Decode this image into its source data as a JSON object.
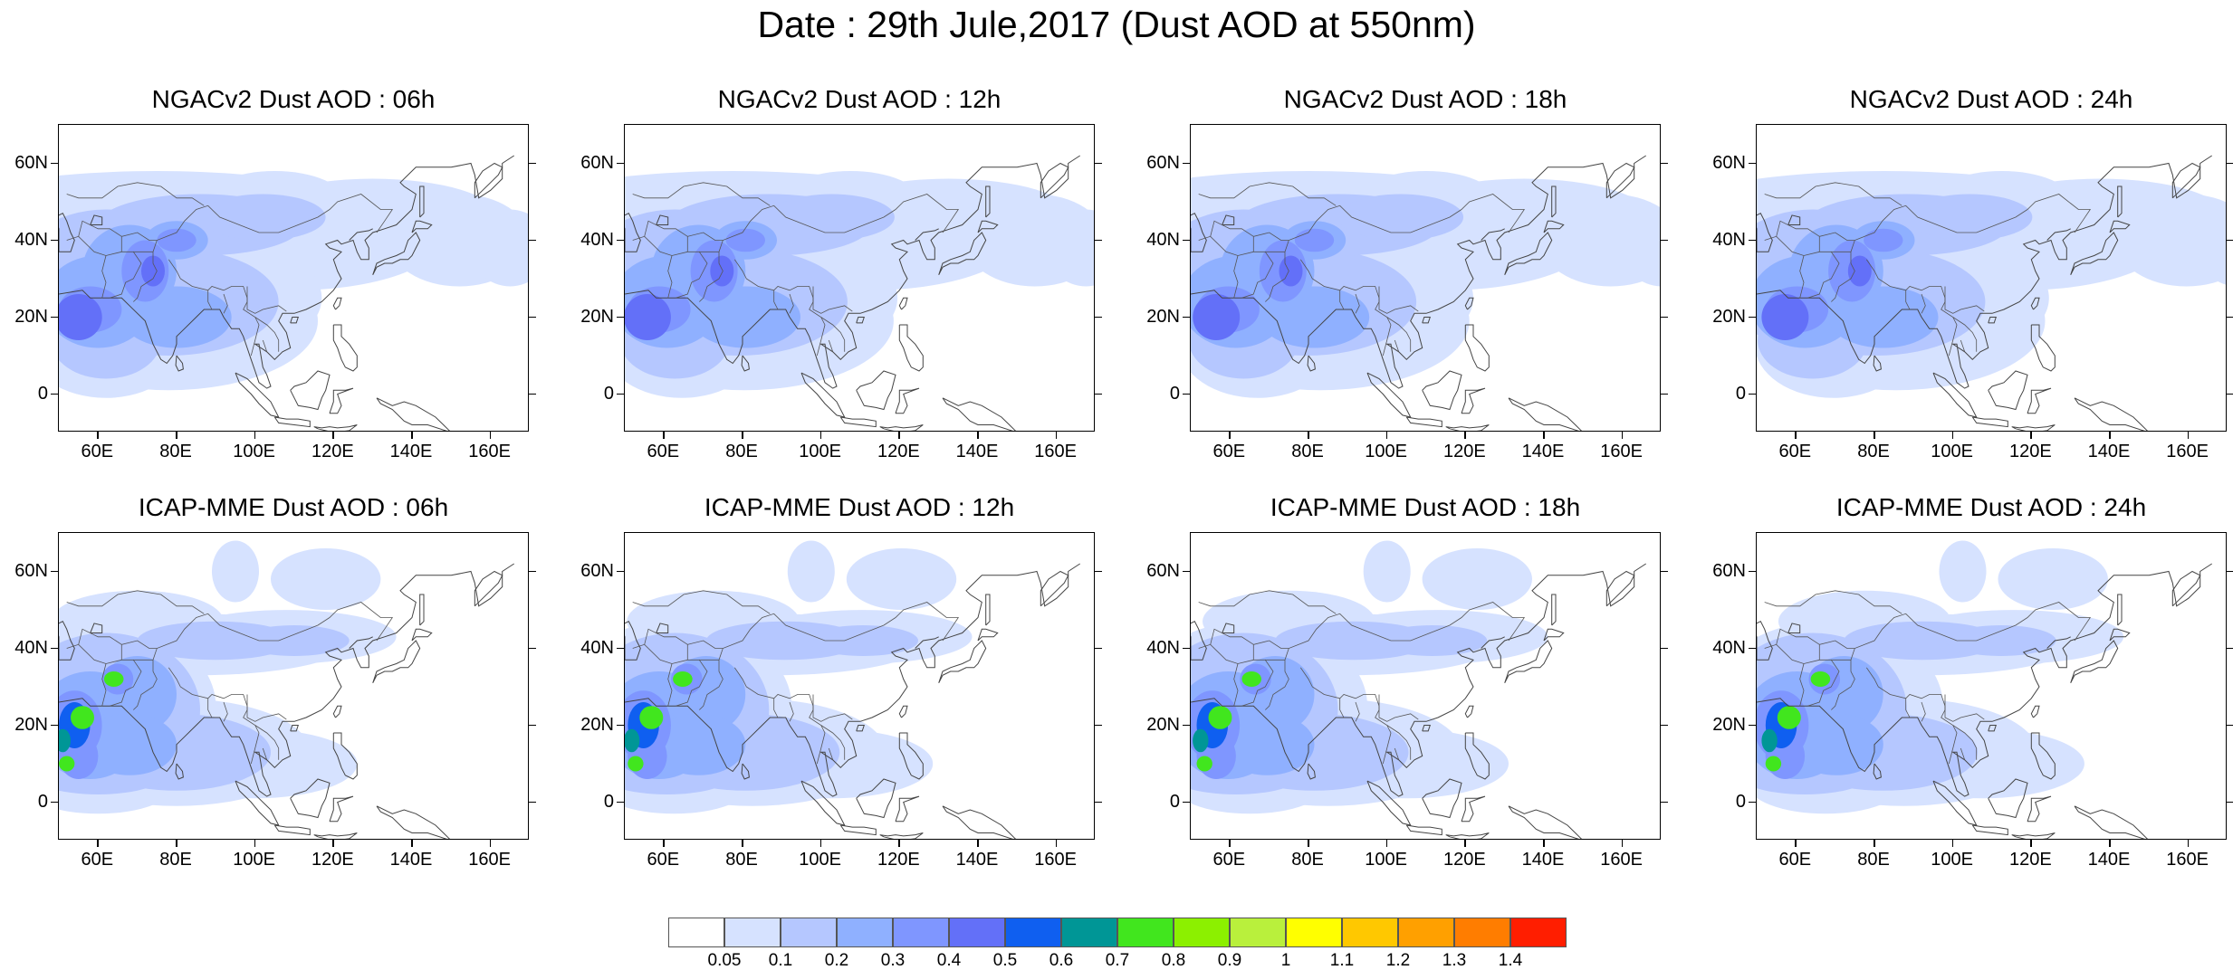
{
  "title": "Date : 29th Jule,2017 (Dust AOD at 550nm)",
  "axes": {
    "y_ticks": [
      "60N",
      "40N",
      "20N",
      "0"
    ],
    "x_ticks": [
      "60E",
      "80E",
      "100E",
      "120E",
      "140E",
      "160E"
    ]
  },
  "panels": [
    {
      "title": "NGACv2 Dust AOD : 06h",
      "model": "ngac"
    },
    {
      "title": "NGACv2 Dust AOD : 12h",
      "model": "ngac"
    },
    {
      "title": "NGACv2 Dust AOD : 18h",
      "model": "ngac"
    },
    {
      "title": "NGACv2 Dust AOD : 24h",
      "model": "ngac"
    },
    {
      "title": "ICAP-MME Dust AOD : 06h",
      "model": "icap"
    },
    {
      "title": "ICAP-MME Dust AOD : 12h",
      "model": "icap"
    },
    {
      "title": "ICAP-MME Dust AOD : 18h",
      "model": "icap"
    },
    {
      "title": "ICAP-MME Dust AOD : 24h",
      "model": "icap"
    }
  ],
  "colorbar": {
    "labels": [
      "0.05",
      "0.1",
      "0.2",
      "0.3",
      "0.4",
      "0.5",
      "0.6",
      "0.7",
      "0.8",
      "0.9",
      "1",
      "1.1",
      "1.2",
      "1.3",
      "1.4"
    ],
    "colors": [
      "#ffffff",
      "#d6e2ff",
      "#b5c7ff",
      "#8fb0ff",
      "#7f96ff",
      "#6370f8",
      "#0f5ff0",
      "#009696",
      "#41e61e",
      "#8cf000",
      "#b9f03c",
      "#ffff00",
      "#ffc800",
      "#ffa000",
      "#ff7d00",
      "#ff1e00"
    ]
  }
}
